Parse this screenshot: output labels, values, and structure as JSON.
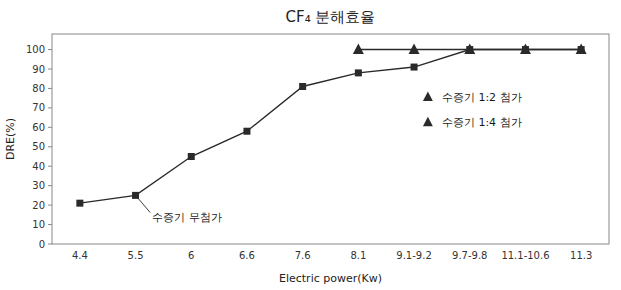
{
  "chart_data": {
    "type": "line",
    "title": "CF₄ 분해효율",
    "x_label": "Electric power(Kw)",
    "y_label": "DRE(%)",
    "categories": [
      "4.4",
      "5.5",
      "6",
      "6.6",
      "7.6",
      "8.1",
      "9.1-9.2",
      "9.7-9.8",
      "11.1-10.6",
      "11.3"
    ],
    "series": [
      {
        "color": "#2a2a2a",
        "marker": "square",
        "values": [
          21,
          25,
          45,
          58,
          81,
          88,
          91,
          100,
          100,
          100
        ]
      },
      {
        "color": "#2a2a2a",
        "marker": "triangle",
        "values": [
          null,
          null,
          null,
          null,
          null,
          100,
          100,
          100,
          100,
          100
        ]
      }
    ],
    "annotations": [
      {
        "text": "수증기  무첨가",
        "x": "5.5"
      },
      {
        "text": "수증기 1:2 첨가",
        "marker": "triangle"
      },
      {
        "text": "수증기 1:4 첨가",
        "marker": "triangle"
      }
    ],
    "ylim": [
      0,
      108
    ],
    "yticks": [
      0,
      10,
      20,
      30,
      40,
      50,
      60,
      70,
      80,
      90,
      100
    ],
    "grid": false
  }
}
